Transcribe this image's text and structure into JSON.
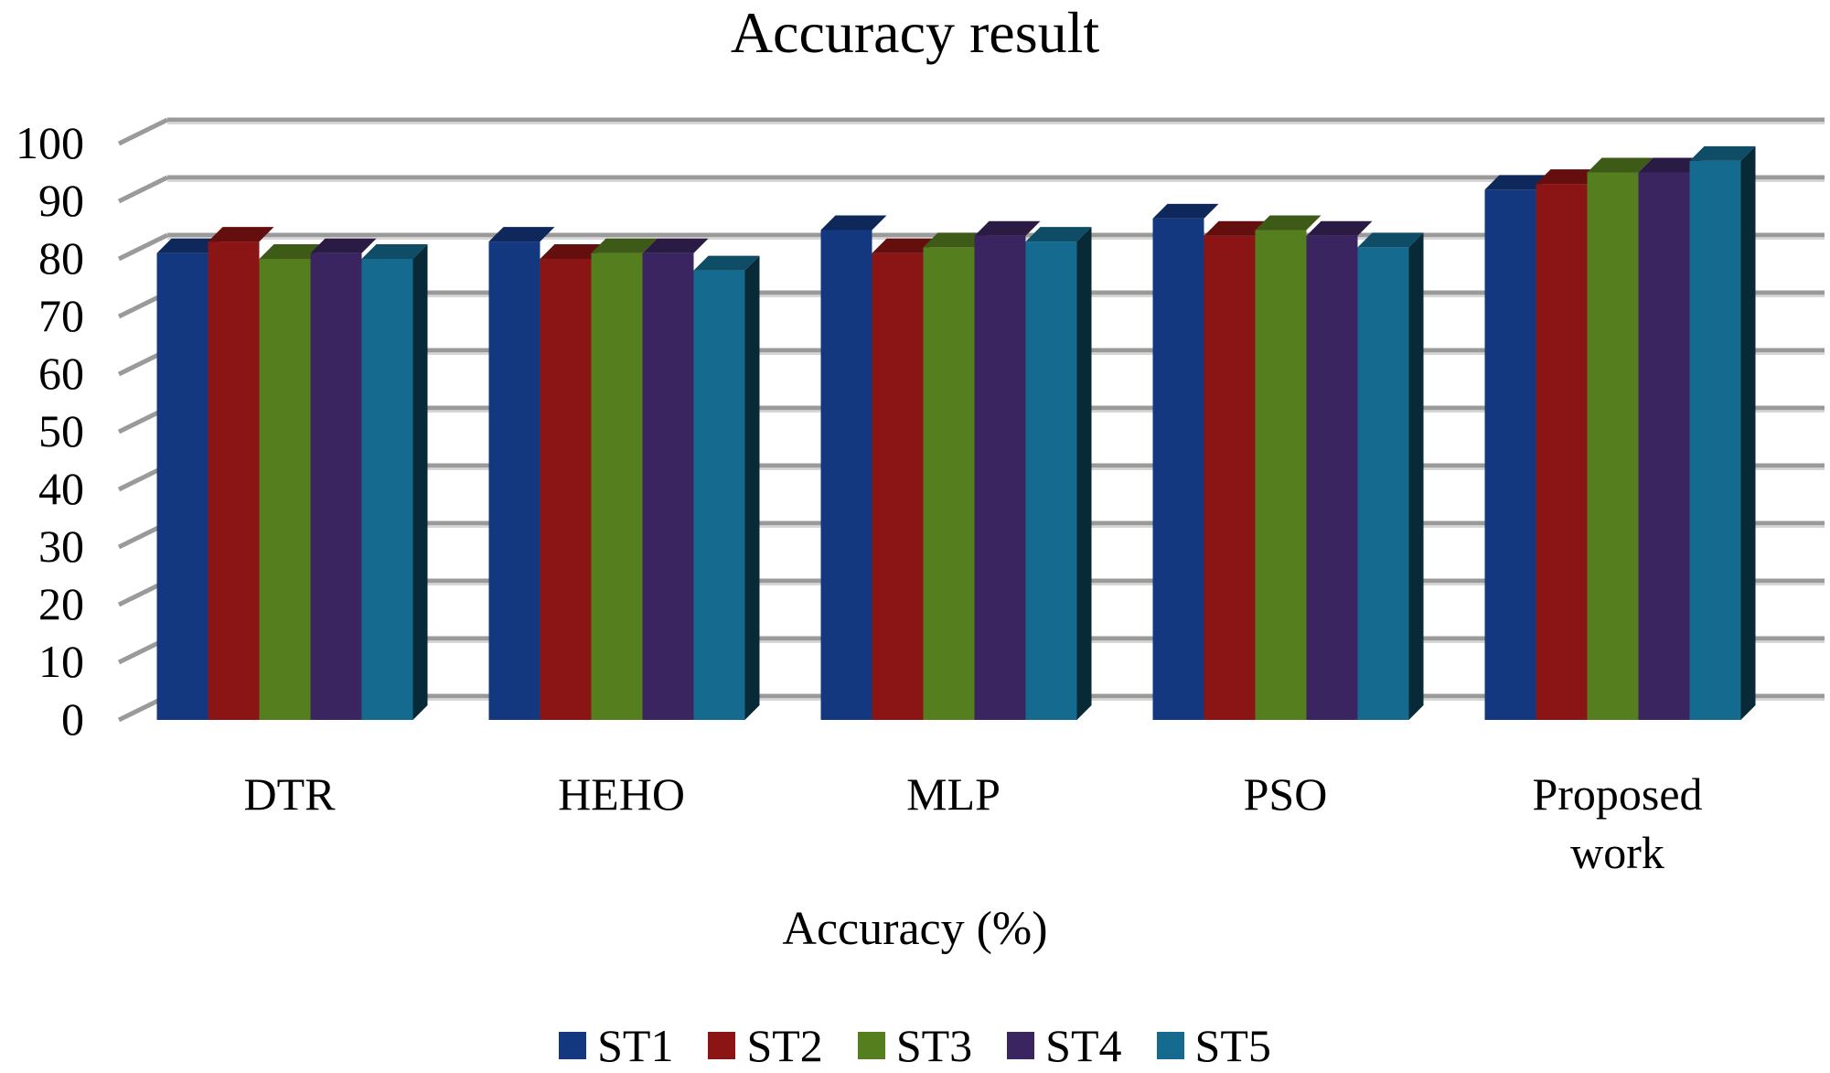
{
  "chart_data": {
    "type": "bar",
    "style": "3d-clustered-column",
    "title": "Accuracy result",
    "xlabel": "Accuracy (%)",
    "ylabel": "",
    "ylim": [
      0,
      100
    ],
    "yticks": [
      0,
      10,
      20,
      30,
      40,
      50,
      60,
      70,
      80,
      90,
      100
    ],
    "grid": true,
    "legend_position": "bottom",
    "categories": [
      [
        "DTR"
      ],
      [
        "HEHO"
      ],
      [
        "MLP"
      ],
      [
        "PSO"
      ],
      [
        "Proposed",
        "work"
      ]
    ],
    "series": [
      {
        "name": "ST1",
        "color": "#14387f",
        "values": [
          81,
          83,
          85,
          87,
          92
        ]
      },
      {
        "name": "ST2",
        "color": "#8b1414",
        "values": [
          83,
          80,
          81,
          84,
          93
        ]
      },
      {
        "name": "ST3",
        "color": "#557f1e",
        "values": [
          80,
          81,
          82,
          85,
          95
        ]
      },
      {
        "name": "ST4",
        "color": "#3b2560",
        "values": [
          81,
          81,
          84,
          84,
          95
        ]
      },
      {
        "name": "ST5",
        "color": "#156b8f",
        "values": [
          80,
          78,
          83,
          82,
          97
        ]
      }
    ]
  }
}
